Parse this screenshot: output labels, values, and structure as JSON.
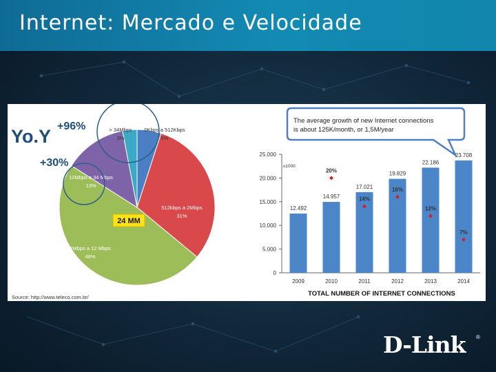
{
  "slide": {
    "title": "Internet: Mercado e Velocidade"
  },
  "brand": {
    "logo_text": "D-Link",
    "registered": "®"
  },
  "colors": {
    "title_bar": "#0f6b95",
    "bar": "#4a86c8",
    "marker": "#d02028",
    "callout": "#4f7fbf"
  },
  "pie": {
    "type": "pie",
    "yoy_label": "Yo.Y",
    "yoy_high": "+96%",
    "yoy_low": "+30%",
    "center_label": "24 MM",
    "source": "Source: http://www.teleco.com.br/",
    "slices": [
      {
        "label": "0Kbps a 512Kbps",
        "pct_label": "5%",
        "value": 5,
        "color": "#4a7fc4"
      },
      {
        "label": "512kbps a 2Mbps",
        "pct_label": "31%",
        "value": 31,
        "color": "#d9484a"
      },
      {
        "label": "2Mbps a 12 Mbps",
        "pct_label": "48%",
        "value": 48,
        "color": "#9cbd58"
      },
      {
        "label": "12Mbps a 34 Mbps",
        "pct_label": "13%",
        "value": 13,
        "color": "#7f63a8"
      },
      {
        "label": "> 34Mbps",
        "pct_label": "3%",
        "value": 3,
        "color": "#3aa9c6"
      }
    ]
  },
  "chart_data": {
    "type": "bar",
    "title": "TOTAL NUMBER OF INTERNET CONNECTIONS",
    "unit_note": "x1000",
    "categories": [
      "2009",
      "2010",
      "2011",
      "2012",
      "2013",
      "2014"
    ],
    "values": [
      12492,
      14957,
      17021,
      19829,
      22186,
      23708
    ],
    "value_labels": [
      "12.492",
      "14.957",
      "17.021",
      "19.829",
      "22.186",
      "23.708"
    ],
    "growth_pct": [
      null,
      20,
      14,
      16,
      12,
      7
    ],
    "growth_labels": [
      "",
      "20%",
      "14%",
      "16%",
      "12%",
      "7%"
    ],
    "ylim": [
      0,
      25000
    ],
    "y_ticks": [
      0,
      5000,
      10000,
      15000,
      20000,
      25000
    ],
    "y_tick_labels": [
      "0",
      "5.000",
      "10.000",
      "15.000",
      "20.000",
      "25.000"
    ],
    "callout": "The average growth of new Internet connections is about 125K/month, or 1,5M/year"
  }
}
